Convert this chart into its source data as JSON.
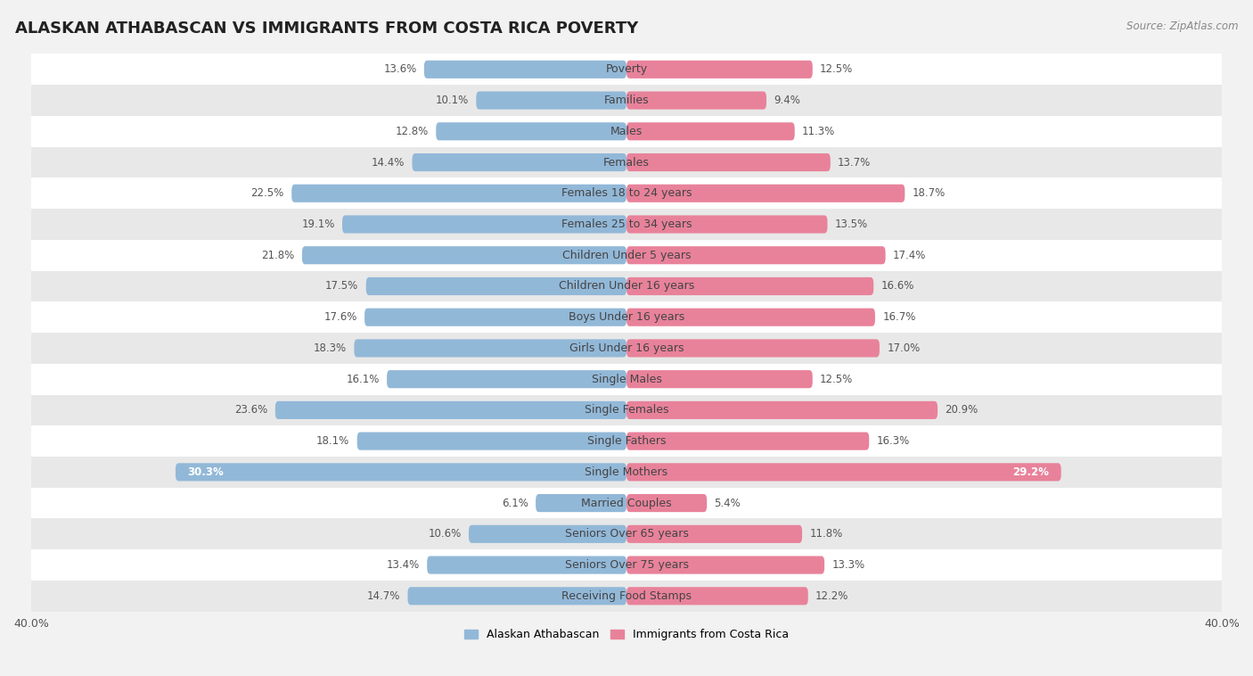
{
  "title": "ALASKAN ATHABASCAN VS IMMIGRANTS FROM COSTA RICA POVERTY",
  "source": "Source: ZipAtlas.com",
  "categories": [
    "Poverty",
    "Families",
    "Males",
    "Females",
    "Females 18 to 24 years",
    "Females 25 to 34 years",
    "Children Under 5 years",
    "Children Under 16 years",
    "Boys Under 16 years",
    "Girls Under 16 years",
    "Single Males",
    "Single Females",
    "Single Fathers",
    "Single Mothers",
    "Married Couples",
    "Seniors Over 65 years",
    "Seniors Over 75 years",
    "Receiving Food Stamps"
  ],
  "left_values": [
    13.6,
    10.1,
    12.8,
    14.4,
    22.5,
    19.1,
    21.8,
    17.5,
    17.6,
    18.3,
    16.1,
    23.6,
    18.1,
    30.3,
    6.1,
    10.6,
    13.4,
    14.7
  ],
  "right_values": [
    12.5,
    9.4,
    11.3,
    13.7,
    18.7,
    13.5,
    17.4,
    16.6,
    16.7,
    17.0,
    12.5,
    20.9,
    16.3,
    29.2,
    5.4,
    11.8,
    13.3,
    12.2
  ],
  "left_color": "#92b8d8",
  "right_color": "#e8829a",
  "left_label": "Alaskan Athabascan",
  "right_label": "Immigrants from Costa Rica",
  "xlim": 40.0,
  "bar_height": 0.58,
  "background_color": "#f2f2f2",
  "row_colors": [
    "#ffffff",
    "#e8e8e8"
  ],
  "title_fontsize": 13,
  "label_fontsize": 9,
  "value_fontsize": 8.5
}
